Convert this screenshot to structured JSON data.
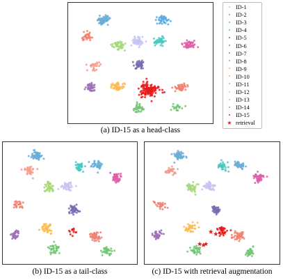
{
  "figure": {
    "captions": [
      "(a) ID-15 as a head-class",
      "(b) ID-15 as a tail-class",
      "(c) ID-15 with retrieval augmentation"
    ]
  },
  "legend": [
    {
      "label": "ID-1",
      "color": "#FDB462",
      "marker": "dot"
    },
    {
      "label": "ID-2",
      "color": "#6BAED6",
      "marker": "dot"
    },
    {
      "label": "ID-3",
      "color": "#5DADE2",
      "marker": "dot"
    },
    {
      "label": "ID-4",
      "color": "#48C9C6",
      "marker": "dot"
    },
    {
      "label": "ID-5",
      "color": "#756BB1",
      "marker": "dot"
    },
    {
      "label": "ID-6",
      "color": "#9E6EB6",
      "marker": "dot"
    },
    {
      "label": "ID-7",
      "color": "#DE5EA8",
      "marker": "dot"
    },
    {
      "label": "ID-8",
      "color": "#F08070",
      "marker": "dot"
    },
    {
      "label": "ID-9",
      "color": "#F4A582",
      "marker": "dot"
    },
    {
      "label": "ID-10",
      "color": "#FDBB4E",
      "marker": "dot"
    },
    {
      "label": "ID-11",
      "color": "#F59A8B",
      "marker": "dot"
    },
    {
      "label": "ID-12",
      "color": "#C7C4F2",
      "marker": "dot"
    },
    {
      "label": "ID-13",
      "color": "#A6D979",
      "marker": "dot"
    },
    {
      "label": "ID-14",
      "color": "#74C476",
      "marker": "dot"
    },
    {
      "label": "ID-15",
      "color": "#E41A1C",
      "marker": "dot"
    },
    {
      "label": "retrieval",
      "color": "#E41A1C",
      "marker": "star"
    }
  ],
  "chart_data": [
    {
      "type": "scatter",
      "title": "(a) ID-15 as a head-class",
      "grid": false,
      "xlim": [
        0,
        1
      ],
      "ylim": [
        0,
        1
      ],
      "clusters": [
        {
          "id": "ID-2",
          "x": 0.22,
          "y": 0.89,
          "n": 70
        },
        {
          "id": "ID-3",
          "x": 0.67,
          "y": 0.9,
          "n": 50
        },
        {
          "id": "ID-8",
          "x": 0.1,
          "y": 0.74,
          "n": 30
        },
        {
          "id": "ID-13",
          "x": 0.34,
          "y": 0.66,
          "n": 50
        },
        {
          "id": "ID-12",
          "x": 0.48,
          "y": 0.69,
          "n": 55
        },
        {
          "id": "ID-4",
          "x": 0.64,
          "y": 0.7,
          "n": 45
        },
        {
          "id": "ID-7",
          "x": 0.86,
          "y": 0.67,
          "n": 50
        },
        {
          "id": "ID-5",
          "x": 0.49,
          "y": 0.48,
          "n": 40
        },
        {
          "id": "ID-11",
          "x": 0.15,
          "y": 0.47,
          "n": 25
        },
        {
          "id": "ID-6",
          "x": 0.13,
          "y": 0.28,
          "n": 40
        },
        {
          "id": "ID-10",
          "x": 0.33,
          "y": 0.28,
          "n": 45
        },
        {
          "id": "ID-15",
          "x": 0.56,
          "y": 0.25,
          "n": 130
        },
        {
          "id": "ID-8",
          "x": 0.8,
          "y": 0.28,
          "n": 45
        },
        {
          "id": "ID-14",
          "x": 0.48,
          "y": 0.09,
          "n": 35
        },
        {
          "id": "ID-14",
          "x": 0.78,
          "y": 0.1,
          "n": 20
        }
      ]
    },
    {
      "type": "scatter",
      "title": "(b) ID-15 as a tail-class",
      "grid": false,
      "xlim": [
        0,
        1
      ],
      "ylim": [
        0,
        1
      ],
      "clusters": [
        {
          "id": "ID-2",
          "x": 0.23,
          "y": 0.93,
          "n": 60
        },
        {
          "id": "ID-11",
          "x": 0.17,
          "y": 0.79,
          "n": 30
        },
        {
          "id": "ID-4",
          "x": 0.58,
          "y": 0.83,
          "n": 40
        },
        {
          "id": "ID-2",
          "x": 0.72,
          "y": 0.84,
          "n": 45
        },
        {
          "id": "ID-13",
          "x": 0.33,
          "y": 0.64,
          "n": 45
        },
        {
          "id": "ID-12",
          "x": 0.48,
          "y": 0.65,
          "n": 45
        },
        {
          "id": "ID-7",
          "x": 0.88,
          "y": 0.73,
          "n": 50
        },
        {
          "id": "ID-8",
          "x": 0.08,
          "y": 0.49,
          "n": 25
        },
        {
          "id": "ID-5",
          "x": 0.53,
          "y": 0.44,
          "n": 40
        },
        {
          "id": "ID-10",
          "x": 0.32,
          "y": 0.27,
          "n": 40
        },
        {
          "id": "ID-6",
          "x": 0.06,
          "y": 0.21,
          "n": 35
        },
        {
          "id": "ID-15",
          "x": 0.52,
          "y": 0.24,
          "n": 12
        },
        {
          "id": "ID-8",
          "x": 0.71,
          "y": 0.2,
          "n": 45
        },
        {
          "id": "ID-14",
          "x": 0.37,
          "y": 0.08,
          "n": 35
        },
        {
          "id": "ID-14",
          "x": 0.8,
          "y": 0.06,
          "n": 35
        }
      ]
    },
    {
      "type": "scatter",
      "title": "(c) ID-15 with retrieval augmentation",
      "grid": false,
      "xlim": [
        0,
        1
      ],
      "ylim": [
        0,
        1
      ],
      "clusters": [
        {
          "id": "ID-2",
          "x": 0.23,
          "y": 0.93,
          "n": 60
        },
        {
          "id": "ID-11",
          "x": 0.17,
          "y": 0.79,
          "n": 30
        },
        {
          "id": "ID-4",
          "x": 0.58,
          "y": 0.83,
          "n": 40
        },
        {
          "id": "ID-2",
          "x": 0.72,
          "y": 0.84,
          "n": 45
        },
        {
          "id": "ID-13",
          "x": 0.33,
          "y": 0.64,
          "n": 45
        },
        {
          "id": "ID-12",
          "x": 0.48,
          "y": 0.65,
          "n": 45
        },
        {
          "id": "ID-7",
          "x": 0.88,
          "y": 0.73,
          "n": 50
        },
        {
          "id": "ID-8",
          "x": 0.08,
          "y": 0.49,
          "n": 25
        },
        {
          "id": "ID-5",
          "x": 0.53,
          "y": 0.44,
          "n": 40
        },
        {
          "id": "ID-10",
          "x": 0.32,
          "y": 0.27,
          "n": 40
        },
        {
          "id": "ID-6",
          "x": 0.06,
          "y": 0.21,
          "n": 35
        },
        {
          "id": "ID-15",
          "x": 0.58,
          "y": 0.25,
          "n": 30
        },
        {
          "id": "ID-8",
          "x": 0.71,
          "y": 0.2,
          "n": 45
        },
        {
          "id": "ID-14",
          "x": 0.37,
          "y": 0.08,
          "n": 35
        },
        {
          "id": "ID-14",
          "x": 0.8,
          "y": 0.06,
          "n": 35
        }
      ],
      "retrieval_points": [
        {
          "x": 0.4,
          "y": 0.13
        },
        {
          "x": 0.43,
          "y": 0.12
        },
        {
          "x": 0.45,
          "y": 0.13
        },
        {
          "x": 0.49,
          "y": 0.24
        },
        {
          "x": 0.53,
          "y": 0.22
        },
        {
          "x": 0.57,
          "y": 0.27
        },
        {
          "x": 0.6,
          "y": 0.23
        }
      ]
    }
  ]
}
